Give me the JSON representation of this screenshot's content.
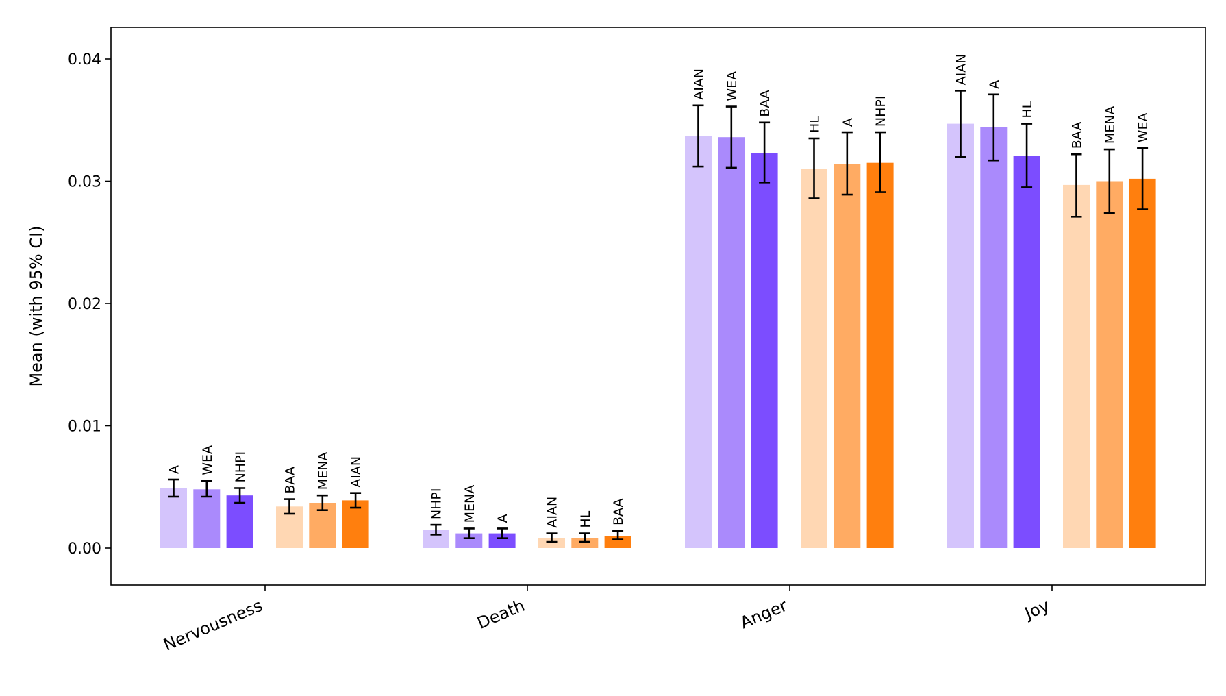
{
  "chart_data": {
    "type": "bar",
    "title": "",
    "xlabel": "",
    "ylabel": "Mean (with 95% CI)",
    "ylim": [
      -0.0031,
      0.0425
    ],
    "yticks": [
      0.0,
      0.01,
      0.02,
      0.03,
      0.04
    ],
    "ytick_labels": [
      "0.00",
      "0.01",
      "0.02",
      "0.03",
      "0.04"
    ],
    "grid": false,
    "legend": "none",
    "categories": [
      "Nervousness",
      "Death",
      "Anger",
      "Joy"
    ],
    "group_palettes": {
      "purple": [
        "#d4c4fc",
        "#aa8afc",
        "#7c4dff"
      ],
      "orange": [
        "#ffd7b3",
        "#ffab63",
        "#ff7f0e"
      ]
    },
    "groups": [
      {
        "category": "Nervousness",
        "bars": [
          {
            "label": "A",
            "value": 0.0049,
            "ci_low": 0.0042,
            "ci_high": 0.0056,
            "color": "#d4c4fc"
          },
          {
            "label": "WEA",
            "value": 0.0048,
            "ci_low": 0.0042,
            "ci_high": 0.0055,
            "color": "#aa8afc"
          },
          {
            "label": "NHPI",
            "value": 0.0043,
            "ci_low": 0.0037,
            "ci_high": 0.0049,
            "color": "#7c4dff"
          },
          {
            "label": "BAA",
            "value": 0.0034,
            "ci_low": 0.0028,
            "ci_high": 0.004,
            "color": "#ffd7b3"
          },
          {
            "label": "MENA",
            "value": 0.0037,
            "ci_low": 0.0031,
            "ci_high": 0.0043,
            "color": "#ffab63"
          },
          {
            "label": "AIAN",
            "value": 0.0039,
            "ci_low": 0.0033,
            "ci_high": 0.0045,
            "color": "#ff7f0e"
          }
        ]
      },
      {
        "category": "Death",
        "bars": [
          {
            "label": "NHPI",
            "value": 0.0015,
            "ci_low": 0.0011,
            "ci_high": 0.0019,
            "color": "#d4c4fc"
          },
          {
            "label": "MENA",
            "value": 0.0012,
            "ci_low": 0.0008,
            "ci_high": 0.0016,
            "color": "#aa8afc"
          },
          {
            "label": "A",
            "value": 0.0012,
            "ci_low": 0.0008,
            "ci_high": 0.0016,
            "color": "#7c4dff"
          },
          {
            "label": "AIAN",
            "value": 0.0008,
            "ci_low": 0.0005,
            "ci_high": 0.0012,
            "color": "#ffd7b3"
          },
          {
            "label": "HL",
            "value": 0.0008,
            "ci_low": 0.0005,
            "ci_high": 0.0012,
            "color": "#ffab63"
          },
          {
            "label": "BAA",
            "value": 0.001,
            "ci_low": 0.0007,
            "ci_high": 0.0014,
            "color": "#ff7f0e"
          }
        ]
      },
      {
        "category": "Anger",
        "bars": [
          {
            "label": "AIAN",
            "value": 0.0337,
            "ci_low": 0.0312,
            "ci_high": 0.0362,
            "color": "#d4c4fc"
          },
          {
            "label": "WEA",
            "value": 0.0336,
            "ci_low": 0.0311,
            "ci_high": 0.0361,
            "color": "#aa8afc"
          },
          {
            "label": "BAA",
            "value": 0.0323,
            "ci_low": 0.0299,
            "ci_high": 0.0348,
            "color": "#7c4dff"
          },
          {
            "label": "HL",
            "value": 0.031,
            "ci_low": 0.0286,
            "ci_high": 0.0335,
            "color": "#ffd7b3"
          },
          {
            "label": "A",
            "value": 0.0314,
            "ci_low": 0.0289,
            "ci_high": 0.034,
            "color": "#ffab63"
          },
          {
            "label": "NHPI",
            "value": 0.0315,
            "ci_low": 0.0291,
            "ci_high": 0.034,
            "color": "#ff7f0e"
          }
        ]
      },
      {
        "category": "Joy",
        "bars": [
          {
            "label": "AIAN",
            "value": 0.0347,
            "ci_low": 0.032,
            "ci_high": 0.0374,
            "color": "#d4c4fc"
          },
          {
            "label": "A",
            "value": 0.0344,
            "ci_low": 0.0317,
            "ci_high": 0.0371,
            "color": "#aa8afc"
          },
          {
            "label": "HL",
            "value": 0.0321,
            "ci_low": 0.0295,
            "ci_high": 0.0347,
            "color": "#7c4dff"
          },
          {
            "label": "BAA",
            "value": 0.0297,
            "ci_low": 0.0271,
            "ci_high": 0.0322,
            "color": "#ffd7b3"
          },
          {
            "label": "MENA",
            "value": 0.03,
            "ci_low": 0.0274,
            "ci_high": 0.0326,
            "color": "#ffab63"
          },
          {
            "label": "WEA",
            "value": 0.0302,
            "ci_low": 0.0277,
            "ci_high": 0.0327,
            "color": "#ff7f0e"
          }
        ]
      }
    ]
  }
}
